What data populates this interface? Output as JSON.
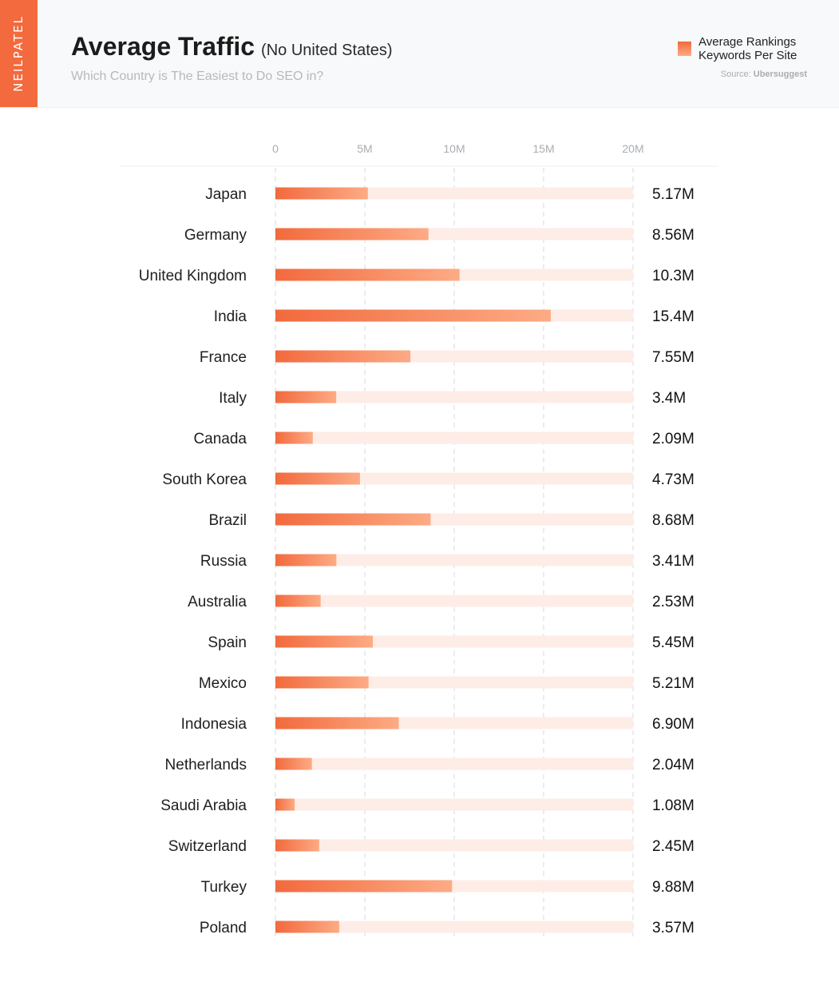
{
  "brand": "NEILPATEL",
  "header": {
    "title": "Average Traffic",
    "title_paren": "(No United States)",
    "subtitle": "Which Country is The Easiest to Do SEO in?"
  },
  "legend": {
    "line1": "Average Rankings",
    "line2": "Keywords Per Site"
  },
  "source": {
    "prefix": "Source:",
    "name": "Ubersuggest"
  },
  "colors": {
    "accent": "#f26a3d",
    "bar_light": "#fdab85",
    "track": "#feede7"
  },
  "chart_data": {
    "type": "bar",
    "orientation": "horizontal",
    "title": "Average Traffic",
    "xlim": [
      0,
      20000000
    ],
    "x_ticks": [
      0,
      5000000,
      10000000,
      15000000,
      20000000
    ],
    "x_tick_labels": [
      "0",
      "5M",
      "10M",
      "15M",
      "20M"
    ],
    "grid": true,
    "legend_position": "top-right",
    "series": [
      {
        "name": "Average Rankings Keywords Per Site"
      }
    ],
    "categories": [
      "Japan",
      "Germany",
      "United Kingdom",
      "India",
      "France",
      "Italy",
      "Canada",
      "South Korea",
      "Brazil",
      "Russia",
      "Australia",
      "Spain",
      "Mexico",
      "Indonesia",
      "Netherlands",
      "Saudi Arabia",
      "Switzerland",
      "Turkey",
      "Poland"
    ],
    "values": [
      5170000,
      8560000,
      10300000,
      15400000,
      7550000,
      3400000,
      2090000,
      4730000,
      8680000,
      3410000,
      2530000,
      5450000,
      5210000,
      6900000,
      2040000,
      1080000,
      2450000,
      9880000,
      3570000
    ],
    "value_labels": [
      "5.17M",
      "8.56M",
      "10.3M",
      "15.4M",
      "7.55M",
      "3.4M",
      "2.09M",
      "4.73M",
      "8.68M",
      "3.41M",
      "2.53M",
      "5.45M",
      "5.21M",
      "6.90M",
      "2.04M",
      "1.08M",
      "2.45M",
      "9.88M",
      "3.57M"
    ]
  }
}
